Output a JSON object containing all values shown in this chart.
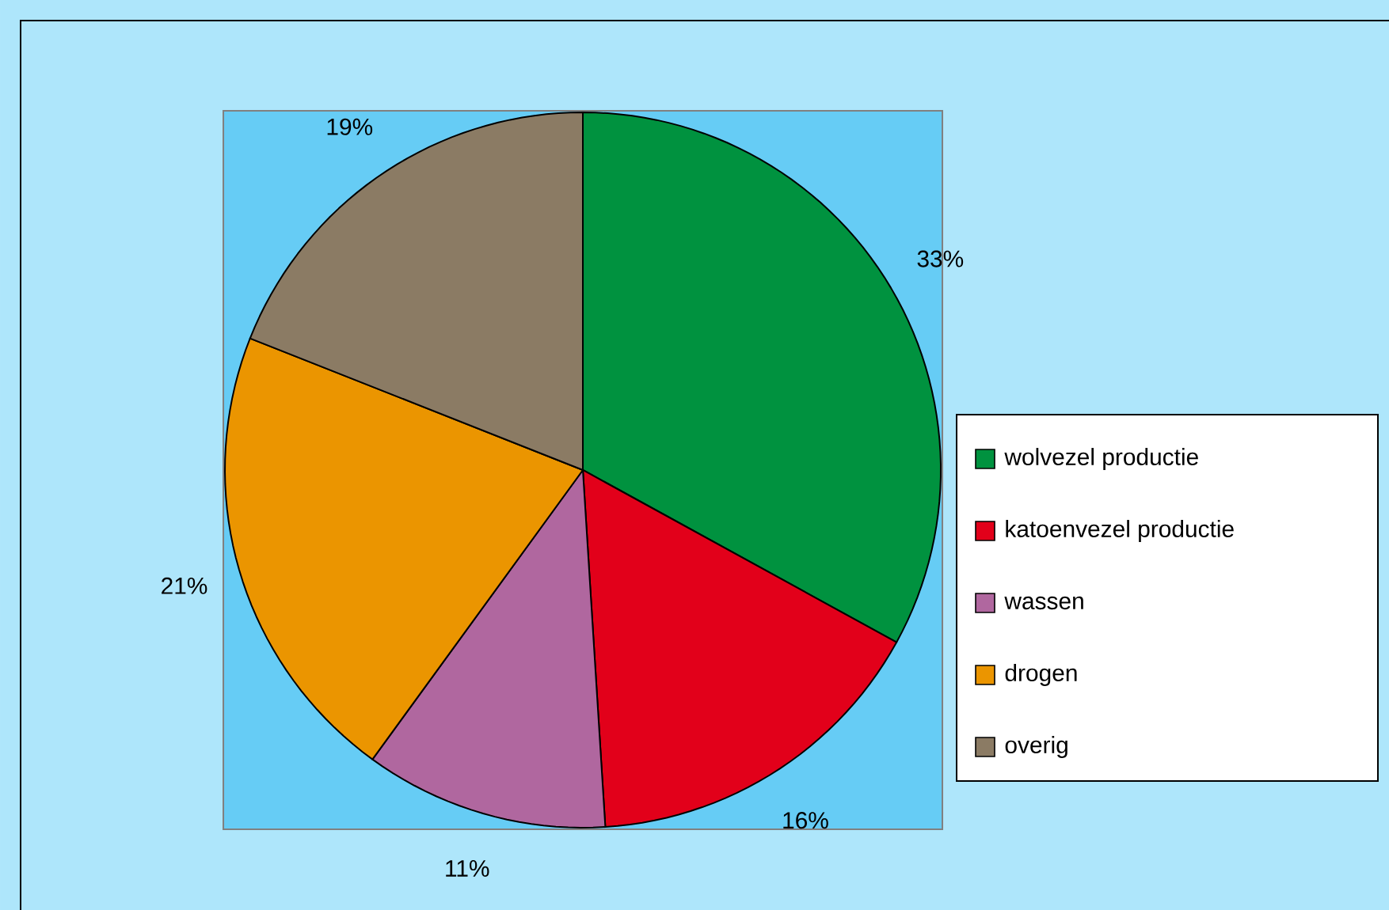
{
  "chart_data": {
    "type": "pie",
    "categories": [
      "wolvezel productie",
      "katoenvezel productie",
      "wassen",
      "drogen",
      "overig"
    ],
    "values": [
      33,
      16,
      11,
      21,
      19
    ],
    "colors": [
      "#00923f",
      "#e2001a",
      "#b0679f",
      "#eb9500",
      "#8b7b64"
    ],
    "value_labels": [
      "33%",
      "16%",
      "11%",
      "21%",
      "19%"
    ],
    "legend": "right"
  }
}
